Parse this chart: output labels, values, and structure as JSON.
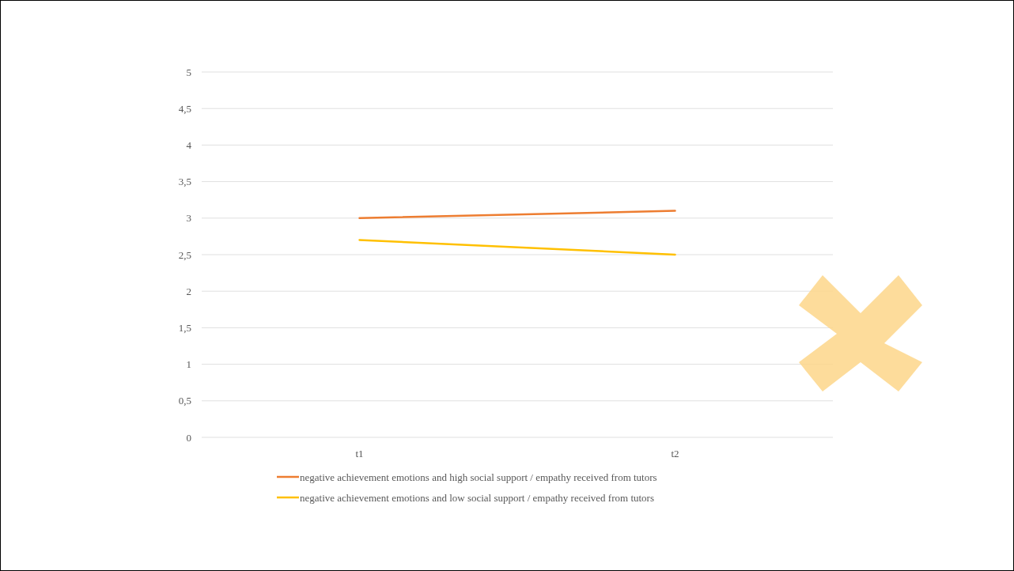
{
  "chart_data": {
    "type": "line",
    "categories": [
      "t1",
      "t2"
    ],
    "series": [
      {
        "name": "negative achievement emotions and high social support / empathy received from tutors",
        "color": "#ed7d31",
        "values": [
          3.0,
          3.1
        ]
      },
      {
        "name": "negative achievement emotions and low social support / empathy received from tutors",
        "color": "#ffc000",
        "values": [
          2.7,
          2.5
        ]
      }
    ],
    "ylim": [
      0,
      5
    ],
    "yticks": [
      0,
      {
        "value": 0.5,
        "label": "0,5"
      },
      1,
      {
        "value": 1.5,
        "label": "1,5"
      },
      2,
      {
        "value": 2.5,
        "label": "2,5"
      },
      3,
      {
        "value": 3.5,
        "label": "3,5"
      },
      4,
      {
        "value": 4.5,
        "label": "4,5"
      },
      5
    ],
    "grid": "y",
    "legend": "bottom",
    "marker": "none",
    "line_style": "solid"
  }
}
